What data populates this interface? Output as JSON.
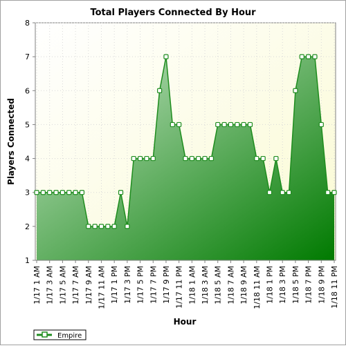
{
  "chart_data": {
    "type": "area",
    "title": "Total Players Connected By Hour",
    "xlabel": "Hour",
    "ylabel": "Players Connected",
    "ylim": [
      1,
      8
    ],
    "yticks": [
      1,
      2,
      3,
      4,
      5,
      6,
      7,
      8
    ],
    "grid": true,
    "legend_position": "bottom-left",
    "x_labels": [
      "1/17 1 AM",
      "1/17 3 AM",
      "1/17 5 AM",
      "1/17 7 AM",
      "1/17 9 AM",
      "1/17 11 AM",
      "1/17 1 PM",
      "1/17 3 PM",
      "1/17 5 PM",
      "1/17 7 PM",
      "1/17 9 PM",
      "1/17 11 PM",
      "1/18 1 AM",
      "1/18 3 AM",
      "1/18 5 AM",
      "1/18 7 AM",
      "1/18 9 AM",
      "1/18 11 AM",
      "1/18 1 PM",
      "1/18 3 PM",
      "1/18 5 PM",
      "1/18 7 PM",
      "1/18 9 PM",
      "1/18 11 PM"
    ],
    "series": [
      {
        "name": "Empire",
        "color": "#1e8c1e",
        "values": [
          3,
          3,
          3,
          3,
          3,
          3,
          3,
          3,
          2,
          2,
          2,
          2,
          2,
          3,
          2,
          4,
          4,
          4,
          4,
          6,
          7,
          5,
          5,
          4,
          4,
          4,
          4,
          4,
          5,
          5,
          5,
          5,
          5,
          5,
          4,
          4,
          3,
          4,
          3,
          3,
          6,
          7,
          7,
          7,
          5,
          3,
          3
        ]
      }
    ]
  }
}
